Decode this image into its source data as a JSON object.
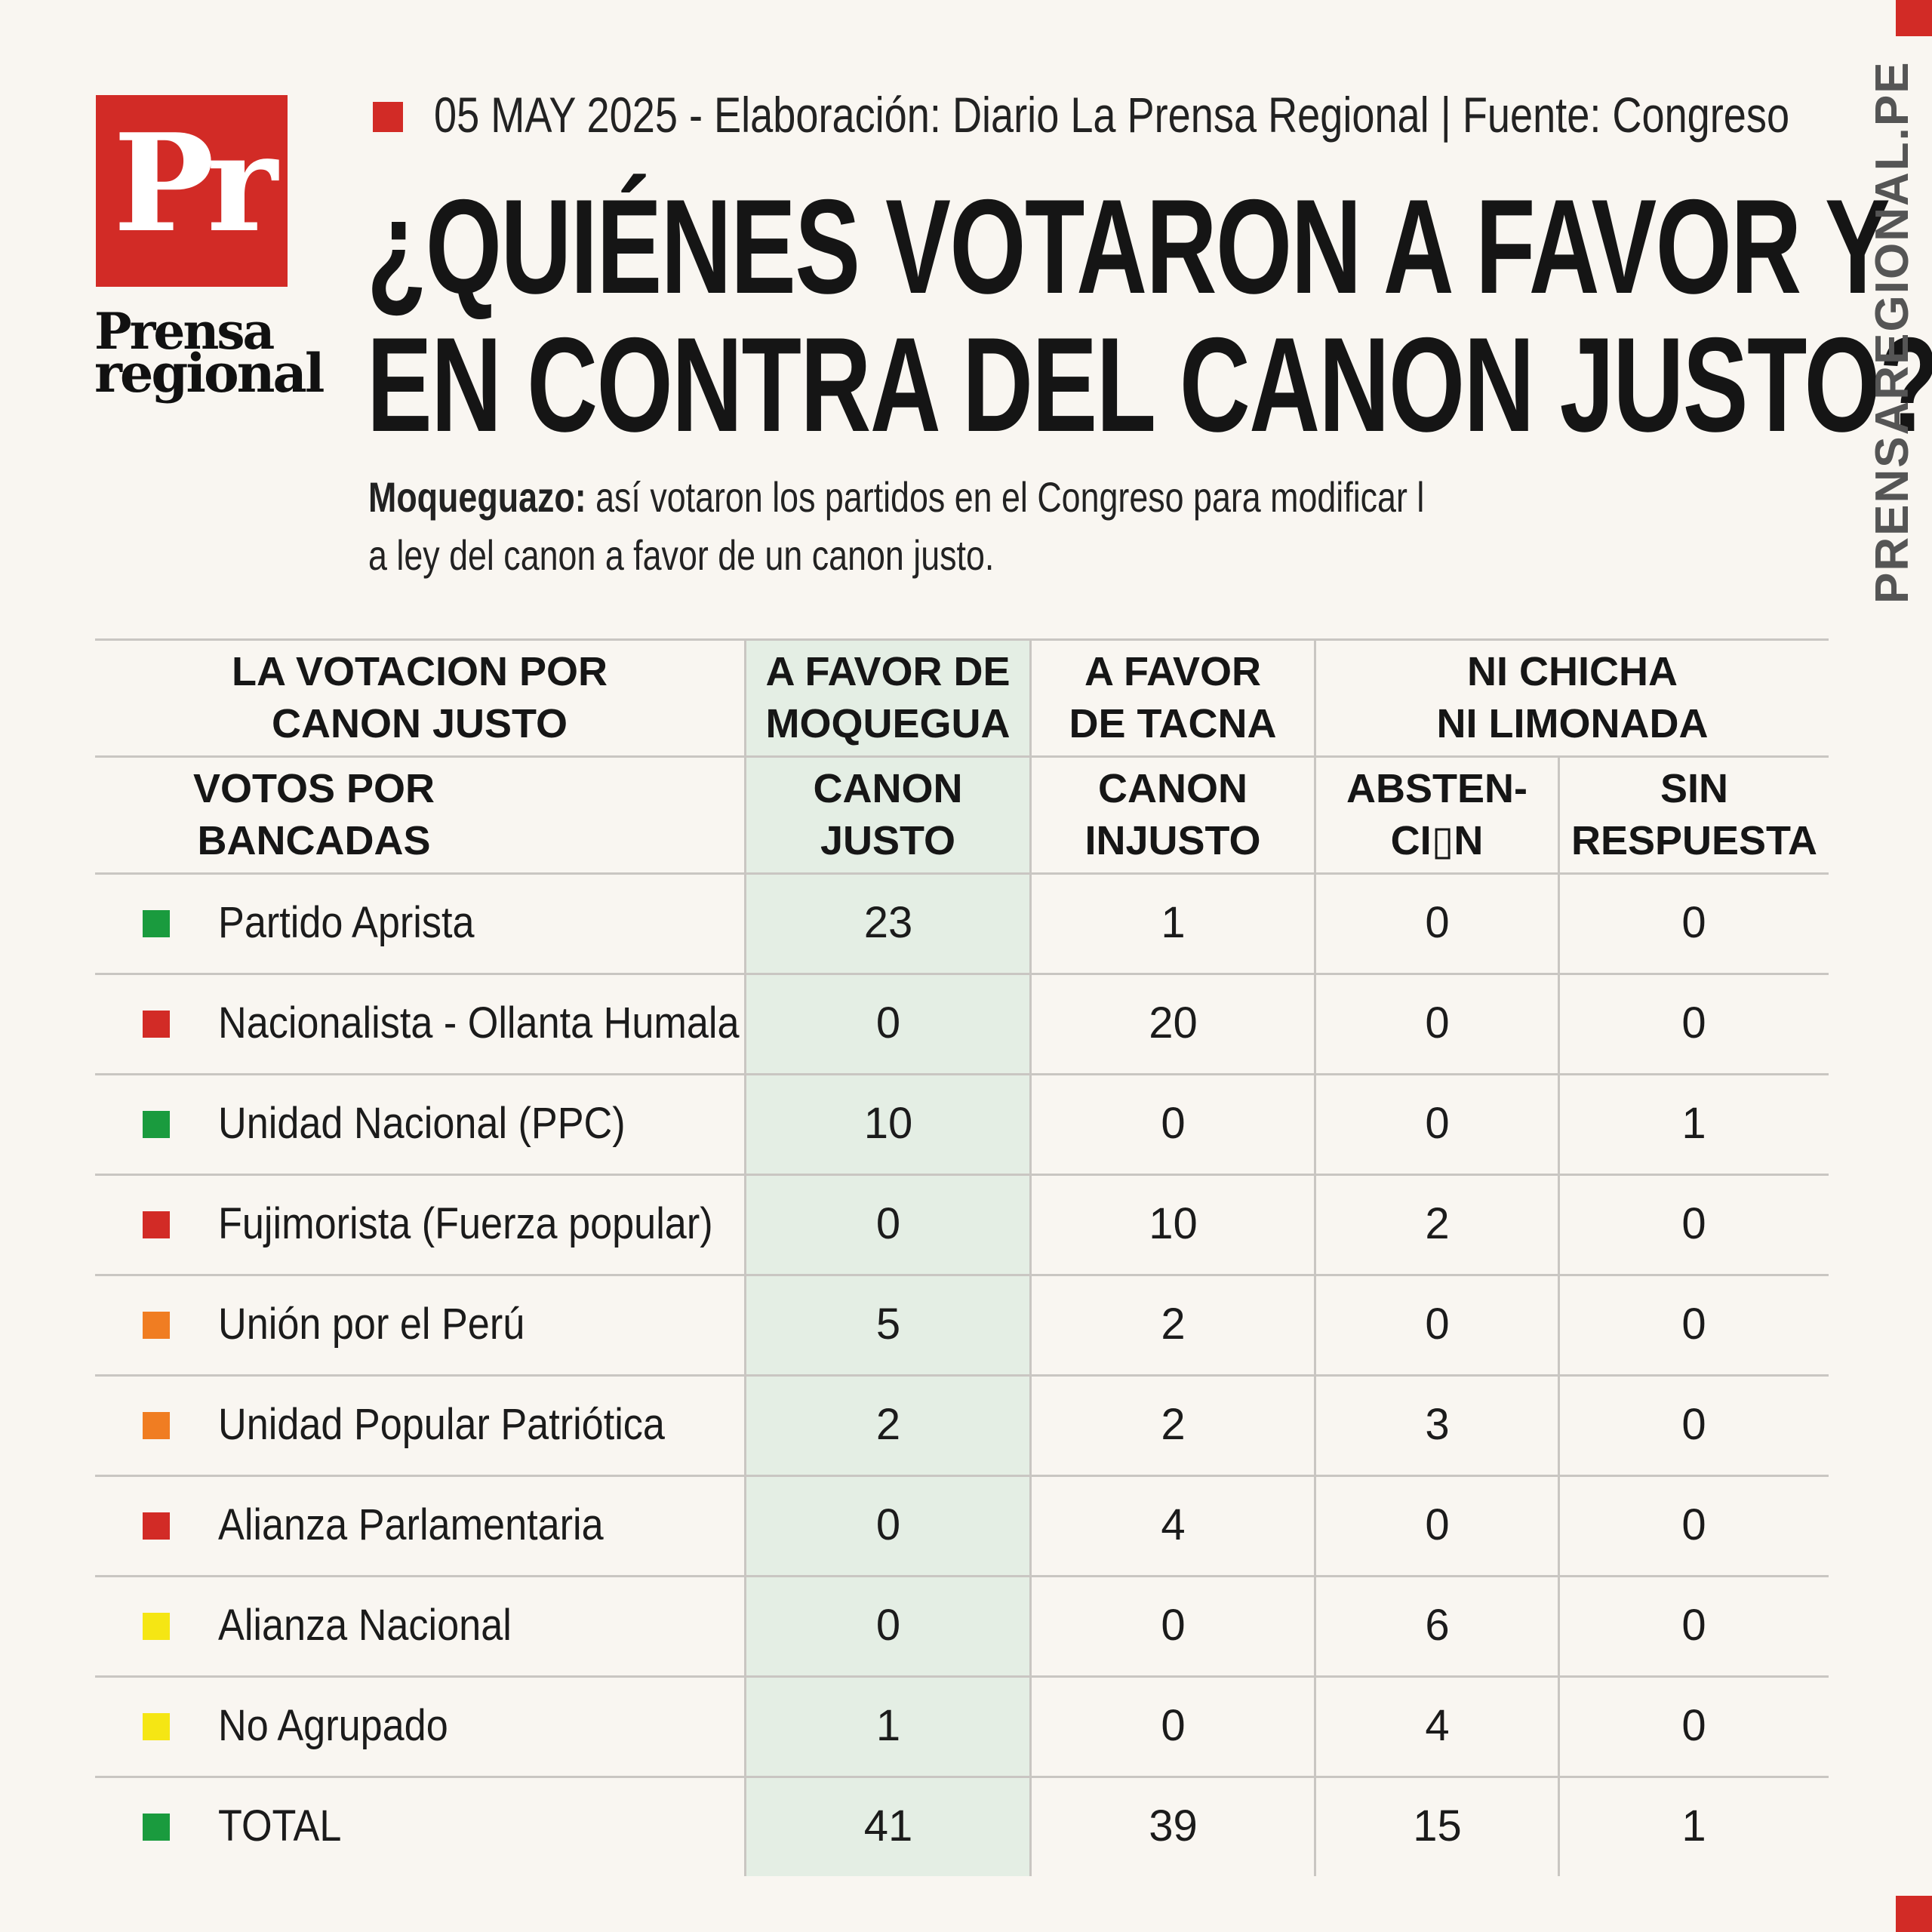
{
  "brand": {
    "logo_mark": "Pr",
    "logo_word_1": "Prensa",
    "logo_word_2": "regional",
    "website_vertical": "PRENSAREGIONAL.PE",
    "accent_color": "#d22b26"
  },
  "meta_line": "05 MAY 2025 -  Elaboración: Diario La Prensa Regional | Fuente: Congreso",
  "title": {
    "line1": "¿QUIÉNES VOTARON A FAVOR Y",
    "line2": "EN CONTRA DEL CANON JUSTO?"
  },
  "subtitle": {
    "lead": "Moqueguazo:",
    "line1_rest": " así votaron los partidos en el Congreso para modificar l",
    "line2": "a ley del canon a favor de un canon justo."
  },
  "table": {
    "group_headers": {
      "label_col": [
        "LA VOTACION POR",
        "CANON JUSTO"
      ],
      "moquegua": [
        "A FAVOR DE",
        "MOQUEGUA"
      ],
      "tacna": [
        "A FAVOR",
        "DE TACNA"
      ],
      "neutral": [
        "NI CHICHA",
        "NI LIMONADA"
      ]
    },
    "sub_headers": {
      "label_col": [
        "VOTOS POR",
        "BANCADAS"
      ],
      "canon_justo": [
        "CANON",
        "JUSTO"
      ],
      "canon_injusto": [
        "CANON",
        "INJUSTO"
      ],
      "abstencion": [
        "ABSTEN-",
        "CI▯N"
      ],
      "sin_respuesta": [
        "SIN",
        "RESPUESTA"
      ]
    },
    "highlight_color": "#e4eee4",
    "rows": [
      {
        "party": "Partido Aprista",
        "color": "#1a9b3e",
        "justo": "23",
        "injusto": "1",
        "abstencion": "0",
        "sin_respuesta": "0"
      },
      {
        "party": "Nacionalista - Ollanta Humala",
        "color": "#d22b26",
        "justo": "0",
        "injusto": "20",
        "abstencion": "0",
        "sin_respuesta": "0"
      },
      {
        "party": "Unidad Nacional (PPC)",
        "color": "#1a9b3e",
        "justo": "10",
        "injusto": "0",
        "abstencion": "0",
        "sin_respuesta": "1"
      },
      {
        "party": "Fujimorista (Fuerza popular)",
        "color": "#d22b26",
        "justo": "0",
        "injusto": "10",
        "abstencion": "2",
        "sin_respuesta": "0"
      },
      {
        "party": "Unión por el Perú",
        "color": "#f07d22",
        "justo": "5",
        "injusto": "2",
        "abstencion": "0",
        "sin_respuesta": "0"
      },
      {
        "party": "Unidad Popular Patriótica",
        "color": "#f07d22",
        "justo": "2",
        "injusto": "2",
        "abstencion": "3",
        "sin_respuesta": "0"
      },
      {
        "party": "Alianza Parlamentaria",
        "color": "#d22b26",
        "justo": "0",
        "injusto": "4",
        "abstencion": "0",
        "sin_respuesta": "0"
      },
      {
        "party": "Alianza Nacional",
        "color": "#f5e614",
        "justo": "0",
        "injusto": "0",
        "abstencion": "6",
        "sin_respuesta": "0"
      },
      {
        "party": "No Agrupado",
        "color": "#f5e614",
        "justo": "1",
        "injusto": "0",
        "abstencion": "4",
        "sin_respuesta": "0"
      },
      {
        "party": "TOTAL",
        "color": "#1a9b3e",
        "justo": "41",
        "injusto": "39",
        "abstencion": "15",
        "sin_respuesta": "1"
      }
    ]
  }
}
